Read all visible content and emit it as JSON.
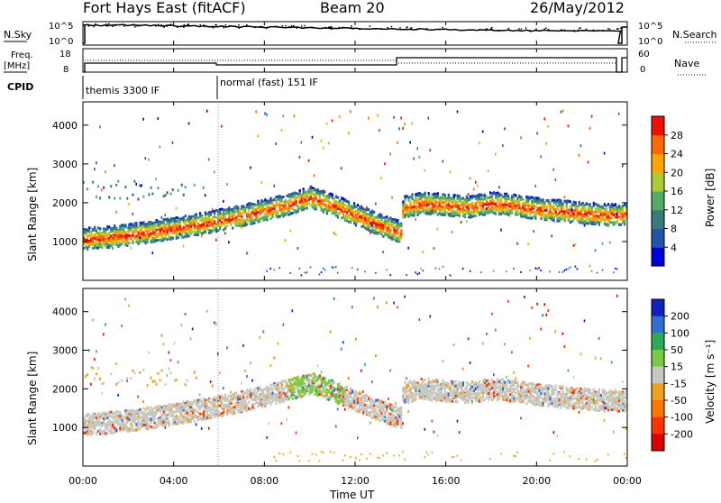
{
  "header": {
    "station": "Fort Hays East (fitACF)",
    "beam": "Beam 20",
    "date": "26/May/2012"
  },
  "sky_panel": {
    "left_label": "N.Sky",
    "right_label": "N.Search",
    "left_ticks": [
      "10^5",
      "10^0"
    ],
    "right_ticks": [
      "10^5",
      "10^0"
    ]
  },
  "freq_panel": {
    "left_label_1": "Freq.",
    "left_label_2": "[MHz]",
    "left_ticks": [
      "18",
      "8"
    ],
    "right_label": "Nave",
    "right_ticks": [
      "60",
      "0"
    ]
  },
  "cpid": {
    "label": "CPID",
    "modes": [
      "themis 3300 IF",
      "normal (fast) 151 IF"
    ]
  },
  "time_axis": {
    "label": "Time UT",
    "ticks": [
      "00:00",
      "04:00",
      "08:00",
      "12:00",
      "16:00",
      "20:00",
      "00:00"
    ]
  },
  "power_panel": {
    "ylabel": "Slant Range [km]",
    "yticks": [
      "1000",
      "2000",
      "3000",
      "4000"
    ],
    "colorbar_label": "Power [dB]",
    "colorbar_ticks": [
      "4",
      "8",
      "12",
      "16",
      "20",
      "24",
      "28"
    ]
  },
  "velocity_panel": {
    "ylabel": "Slant Range [km]",
    "yticks": [
      "1000",
      "2000",
      "3000",
      "4000"
    ],
    "colorbar_label": "Velocity [m s⁻¹]",
    "colorbar_ticks": [
      "200",
      "100",
      "50",
      "15",
      "-15",
      "-50",
      "-100",
      "-200"
    ]
  },
  "colors": {
    "power_scale": [
      "#0000dd",
      "#2255aa",
      "#3a7a7a",
      "#55aa66",
      "#aacc33",
      "#ffa500",
      "#ff6a00",
      "#ee1100"
    ],
    "velocity_scale": [
      "#1020c0",
      "#2f6fd0",
      "#2aaa55",
      "#77cc44",
      "#c8c8c0",
      "#f0a020",
      "#ff7700",
      "#ff3300",
      "#dd0000"
    ]
  },
  "chart_data": {
    "type": "heatmap",
    "x_range_hours": [
      0,
      24
    ],
    "y_range_km": [
      0,
      4600
    ],
    "mode_change_hour": 6,
    "power_band_center_km": [
      [
        0.0,
        1080
      ],
      [
        1.0,
        1120
      ],
      [
        2.0,
        1180
      ],
      [
        3.0,
        1260
      ],
      [
        4.0,
        1350
      ],
      [
        5.0,
        1450
      ],
      [
        6.0,
        1560
      ],
      [
        7.0,
        1680
      ],
      [
        8.0,
        1820
      ],
      [
        9.0,
        1960
      ],
      [
        10.0,
        2150
      ],
      [
        11.0,
        1950
      ],
      [
        12.0,
        1700
      ],
      [
        13.0,
        1450
      ],
      [
        14.0,
        1250
      ],
      [
        14.1,
        1900
      ],
      [
        15.0,
        2000
      ],
      [
        16.0,
        1950
      ],
      [
        17.0,
        1900
      ],
      [
        18.0,
        2000
      ],
      [
        19.0,
        1950
      ],
      [
        20.0,
        1850
      ],
      [
        21.0,
        1800
      ],
      [
        22.0,
        1750
      ],
      [
        23.0,
        1700
      ],
      [
        24.0,
        1700
      ]
    ]
  }
}
